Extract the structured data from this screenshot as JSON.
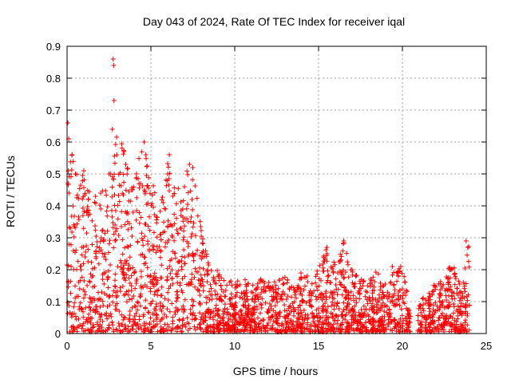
{
  "chart_data": {
    "type": "scatter",
    "title": "Day 043 of 2024, Rate Of TEC Index for receiver iqal",
    "xlabel": "GPS time / hours",
    "ylabel": "ROTI / TECUs",
    "xlim": [
      0,
      25
    ],
    "ylim": [
      0,
      0.9
    ],
    "grid": true,
    "marker": "+",
    "x_ticks": [
      0,
      5,
      10,
      15,
      20,
      25
    ],
    "x_tick_labels": [
      "0",
      "5",
      "10",
      "15",
      "20",
      "25"
    ],
    "y_ticks": [
      0,
      0.1,
      0.2,
      0.3,
      0.4,
      0.5,
      0.6,
      0.7,
      0.8,
      0.9
    ],
    "y_tick_labels": [
      "0",
      "0.1",
      "0.2",
      "0.3",
      "0.4",
      "0.5",
      "0.6",
      "0.7",
      "0.8",
      "0.9"
    ],
    "series": [
      {
        "name": "ROTI",
        "color": "#ff0000",
        "envelope": {
          "description": "approximate per-time-bin maximum ROTI read from the plot; points are dense below this upper envelope",
          "x": [
            0,
            0.5,
            1,
            1.5,
            2,
            2.5,
            3,
            3.5,
            4,
            4.5,
            5,
            5.5,
            6,
            6.5,
            7,
            7.5,
            8,
            8.5,
            9,
            9.5,
            10,
            10.5,
            11,
            11.5,
            12,
            12.5,
            13,
            13.5,
            14,
            14.5,
            15,
            15.5,
            16,
            16.5,
            17,
            17.5,
            18,
            18.5,
            19,
            19.5,
            20,
            20.5,
            21,
            21.5,
            22,
            22.5,
            23,
            23.5,
            24
          ],
          "y": [
            0.66,
            0.5,
            0.51,
            0.43,
            0.44,
            0.5,
            0.64,
            0.57,
            0.48,
            0.6,
            0.49,
            0.4,
            0.56,
            0.44,
            0.5,
            0.53,
            0.34,
            0.22,
            0.2,
            0.16,
            0.17,
            0.18,
            0.15,
            0.17,
            0.17,
            0.17,
            0.18,
            0.15,
            0.2,
            0.17,
            0.21,
            0.27,
            0.22,
            0.29,
            0.2,
            0.17,
            0.17,
            0.2,
            0.16,
            0.2,
            0.21,
            0.08,
            0.1,
            0.14,
            0.16,
            0.18,
            0.23,
            0.14,
            0.29
          ]
        },
        "points": [
          {
            "x": 0.05,
            "y": 0.66
          },
          {
            "x": 0.1,
            "y": 0.61
          },
          {
            "x": 0.3,
            "y": 0.56
          },
          {
            "x": 0.5,
            "y": 0.5
          },
          {
            "x": 1.0,
            "y": 0.51
          },
          {
            "x": 1.7,
            "y": 0.43
          },
          {
            "x": 2.0,
            "y": 0.44
          },
          {
            "x": 2.5,
            "y": 0.5
          },
          {
            "x": 2.75,
            "y": 0.86
          },
          {
            "x": 2.78,
            "y": 0.84
          },
          {
            "x": 2.8,
            "y": 0.73
          },
          {
            "x": 2.7,
            "y": 0.64
          },
          {
            "x": 3.4,
            "y": 0.57
          },
          {
            "x": 3.5,
            "y": 0.53
          },
          {
            "x": 4.6,
            "y": 0.6
          },
          {
            "x": 4.7,
            "y": 0.56
          },
          {
            "x": 6.1,
            "y": 0.56
          },
          {
            "x": 6.0,
            "y": 0.5
          },
          {
            "x": 7.3,
            "y": 0.53
          },
          {
            "x": 7.5,
            "y": 0.52
          },
          {
            "x": 7.0,
            "y": 0.46
          },
          {
            "x": 15.5,
            "y": 0.27
          },
          {
            "x": 16.5,
            "y": 0.29
          },
          {
            "x": 17.0,
            "y": 0.2
          },
          {
            "x": 19.4,
            "y": 0.21
          },
          {
            "x": 19.9,
            "y": 0.21
          },
          {
            "x": 23.8,
            "y": 0.29
          },
          {
            "x": 23.9,
            "y": 0.27
          }
        ]
      }
    ]
  }
}
